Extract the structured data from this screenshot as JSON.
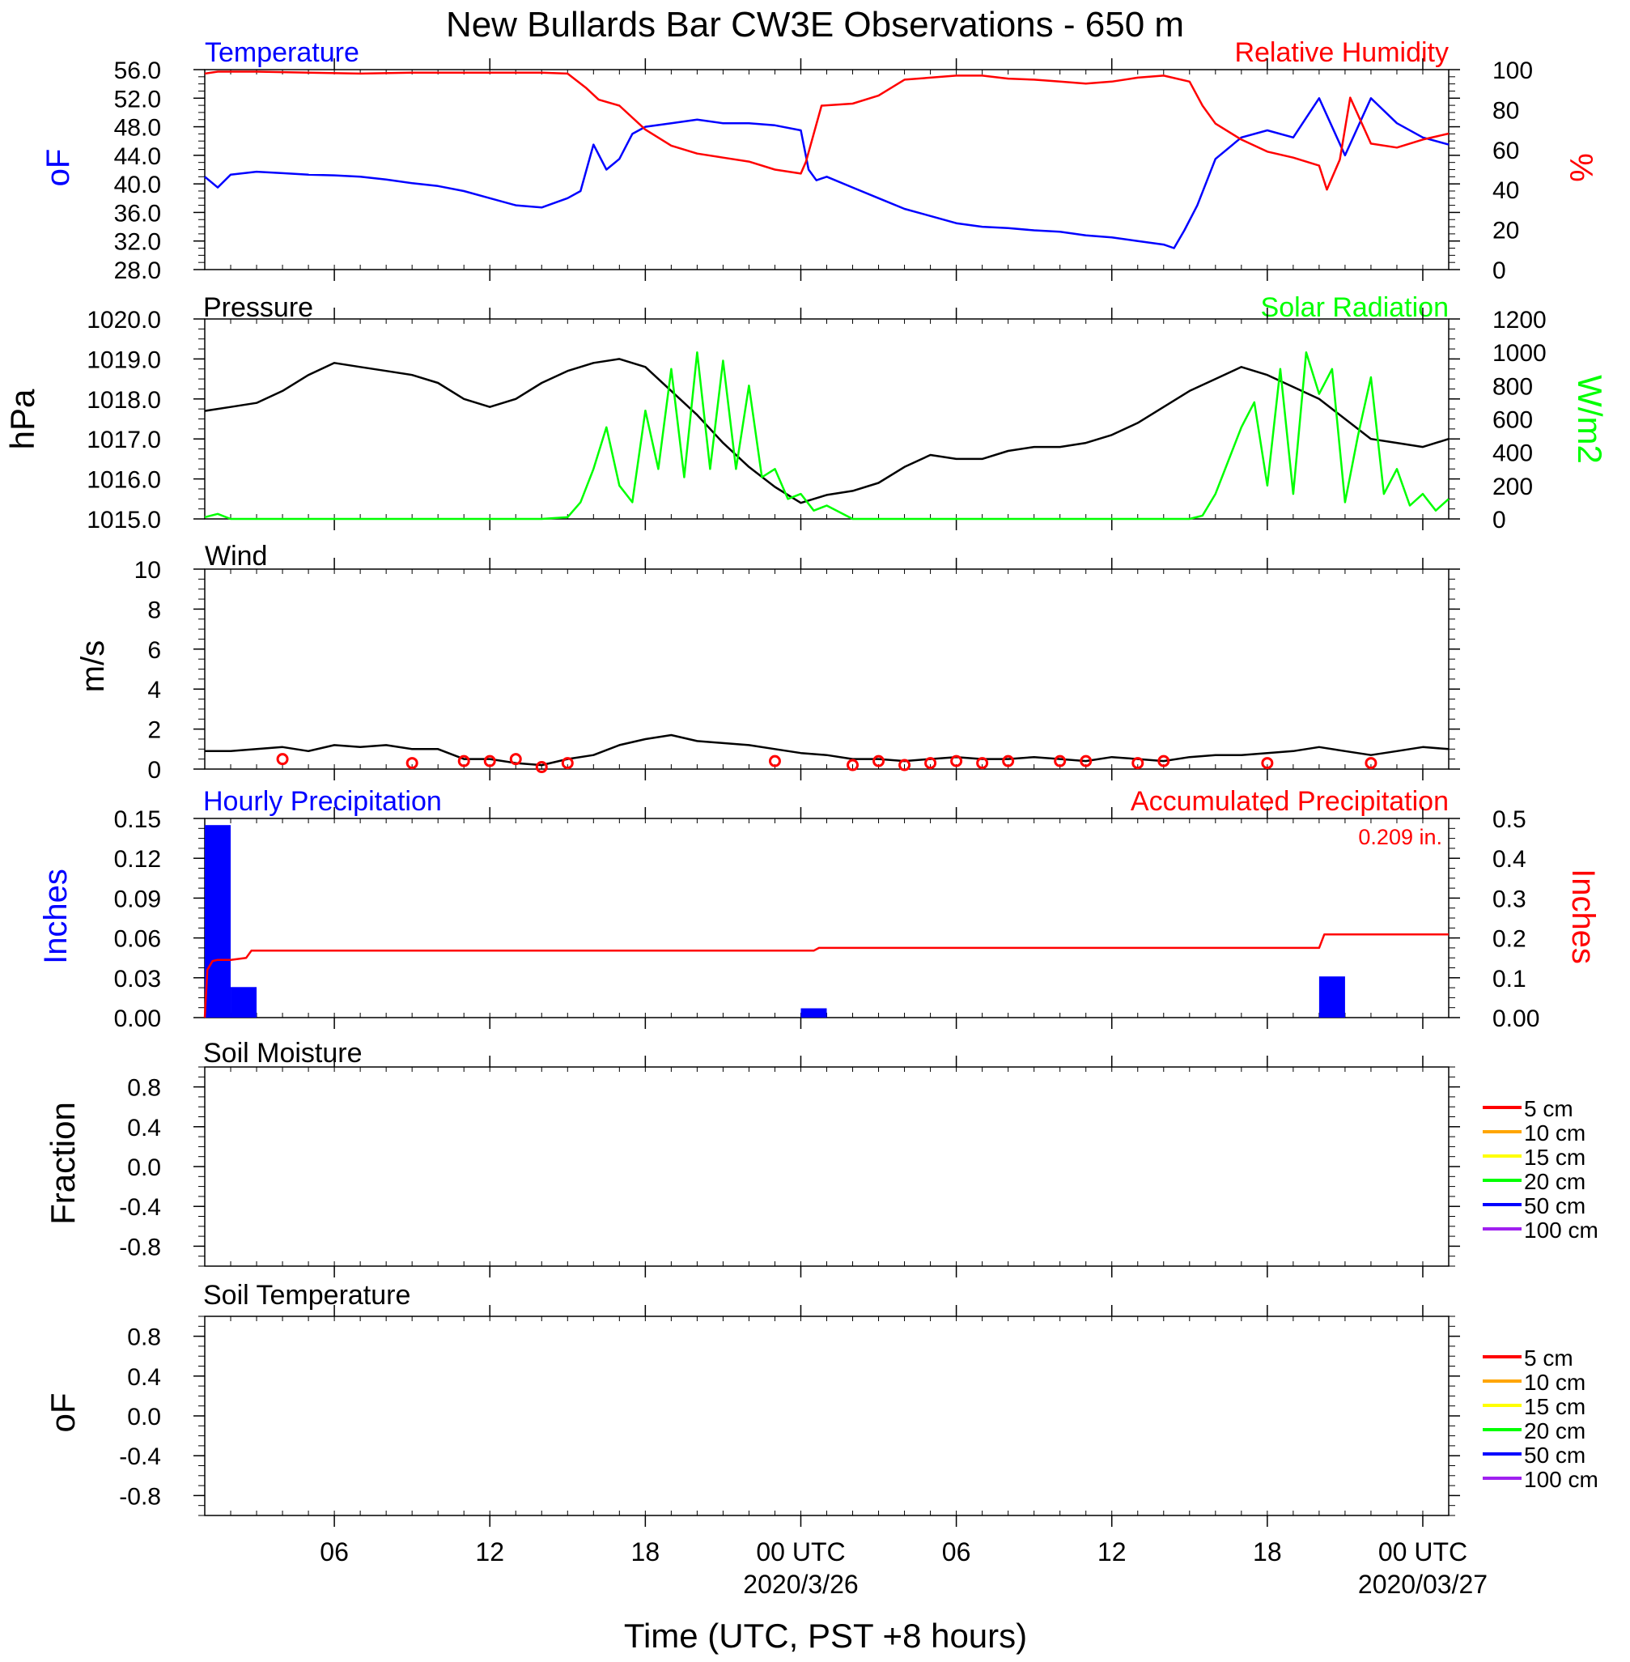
{
  "figure": {
    "title": "New Bullards Bar CW3E Observations - 650 m",
    "xlabel": "Time (UTC, PST +8 hours)",
    "time_axis": {
      "start_hour": 1,
      "end_hour": 49,
      "ticks": [
        {
          "hour": 6,
          "label": "06",
          "sublabel": ""
        },
        {
          "hour": 12,
          "label": "12",
          "sublabel": ""
        },
        {
          "hour": 18,
          "label": "18",
          "sublabel": ""
        },
        {
          "hour": 24,
          "label": "00 UTC",
          "sublabel": "2020/3/26"
        },
        {
          "hour": 30,
          "label": "06",
          "sublabel": ""
        },
        {
          "hour": 36,
          "label": "12",
          "sublabel": ""
        },
        {
          "hour": 42,
          "label": "18",
          "sublabel": ""
        },
        {
          "hour": 48,
          "label": "00 UTC",
          "sublabel": "2020/03/27"
        }
      ]
    }
  },
  "panels": {
    "temperature": {
      "left_title": "Temperature",
      "right_title": "Relative Humidity",
      "left_unit": "oF",
      "right_unit": "%"
    },
    "pressure": {
      "left_title": "Pressure",
      "right_title": "Solar Radiation",
      "left_unit": "hPa",
      "right_unit": "W/m2"
    },
    "wind": {
      "left_title": "Wind",
      "left_unit": "m/s"
    },
    "precip": {
      "left_title": "Hourly Precipitation",
      "right_title": "Accumulated Precipitation",
      "left_unit": "Inches",
      "right_unit": "Inches",
      "total_label": "0.209 in."
    },
    "soil_moisture": {
      "left_title": "Soil Moisture",
      "left_unit": "Fraction"
    },
    "soil_temperature": {
      "left_title": "Soil Temperature",
      "left_unit": "oF"
    }
  },
  "chart_data": [
    {
      "id": "temperature_rh",
      "type": "line",
      "x_unit": "hours since 2020-03-25 00 UTC",
      "xlim": [
        1,
        49
      ],
      "y_left": {
        "label": "oF",
        "lim": [
          28,
          56
        ],
        "ticks": [
          28.0,
          32.0,
          36.0,
          40.0,
          44.0,
          48.0,
          52.0,
          56.0
        ],
        "tick_labels": [
          "28.0",
          "32.0",
          "36.0",
          "40.0",
          "44.0",
          "48.0",
          "52.0",
          "56.0"
        ]
      },
      "y_right": {
        "label": "%",
        "lim": [
          0,
          100
        ],
        "ticks": [
          0,
          20,
          40,
          60,
          80,
          100
        ],
        "tick_labels": [
          "0",
          "20",
          "40",
          "60",
          "80",
          "100"
        ]
      },
      "series": [
        {
          "name": "Temperature",
          "axis": "left",
          "color": "#0000ff",
          "x": [
            1,
            1.5,
            2,
            3,
            4,
            5,
            6,
            7,
            8,
            9,
            10,
            11,
            12,
            13,
            14,
            15,
            15.5,
            16,
            16.5,
            17,
            17.5,
            18,
            19,
            20,
            21,
            22,
            23,
            24,
            24.3,
            24.6,
            25,
            26,
            27,
            28,
            29,
            30,
            31,
            32,
            33,
            34,
            35,
            36,
            37,
            38,
            38.4,
            38.8,
            39.3,
            40,
            41,
            42,
            43,
            44,
            45,
            46,
            47,
            48,
            49
          ],
          "y": [
            41,
            39.5,
            41.3,
            41.7,
            41.5,
            41.3,
            41.2,
            41.0,
            40.6,
            40.1,
            39.7,
            39.0,
            38.0,
            37.0,
            36.7,
            38.0,
            39.0,
            45.5,
            42.0,
            43.5,
            47.0,
            48.0,
            48.5,
            49.0,
            48.5,
            48.5,
            48.2,
            47.5,
            42.0,
            40.5,
            41.0,
            39.5,
            38.0,
            36.5,
            35.5,
            34.5,
            34.0,
            33.8,
            33.5,
            33.3,
            32.8,
            32.5,
            32.0,
            31.5,
            31.0,
            33.5,
            37.0,
            43.5,
            46.5,
            47.5,
            46.5,
            52.0,
            44.0,
            52.0,
            48.5,
            46.5,
            45.5
          ]
        },
        {
          "name": "Relative Humidity",
          "axis": "right",
          "color": "#ff0000",
          "x": [
            1,
            1.5,
            3,
            5,
            7,
            9,
            11,
            13,
            14,
            15,
            15.7,
            16.2,
            17,
            18,
            19,
            20,
            21,
            22,
            23,
            24,
            24.2,
            24.8,
            26,
            27,
            28,
            29,
            30,
            31,
            32,
            33,
            34,
            35,
            36,
            37,
            38,
            39,
            39.5,
            40,
            41,
            42,
            43,
            44,
            44.3,
            44.8,
            45.2,
            46,
            47,
            48,
            49
          ],
          "y": [
            98,
            99,
            99,
            98.5,
            98,
            98.5,
            98.5,
            98.5,
            98.5,
            98,
            91,
            85,
            82,
            70,
            62,
            58,
            56,
            54,
            50,
            48,
            54,
            82,
            83,
            87,
            95,
            96,
            97,
            97,
            95.5,
            95,
            94,
            93,
            94,
            96,
            97,
            94,
            82,
            73,
            65,
            59,
            56,
            52,
            40,
            55,
            86,
            63,
            61,
            65,
            68
          ]
        }
      ]
    },
    {
      "id": "pressure_solar",
      "type": "line",
      "x_unit": "hours since 2020-03-25 00 UTC",
      "xlim": [
        1,
        49
      ],
      "y_left": {
        "label": "hPa",
        "lim": [
          1015.0,
          1020.0
        ],
        "ticks": [
          1015,
          1016,
          1017,
          1018,
          1019,
          1020
        ],
        "tick_labels": [
          "1015.0",
          "1016.0",
          "1017.0",
          "1018.0",
          "1019.0",
          "1020.0"
        ]
      },
      "y_right": {
        "label": "W/m2",
        "lim": [
          0,
          1200
        ],
        "ticks": [
          0,
          200,
          400,
          600,
          800,
          1000,
          1200
        ],
        "tick_labels": [
          "0",
          "200",
          "400",
          "600",
          "800",
          "1000",
          "1200"
        ]
      },
      "series": [
        {
          "name": "Pressure",
          "axis": "left",
          "color": "#000000",
          "x": [
            1,
            2,
            3,
            4,
            5,
            6,
            7,
            8,
            9,
            10,
            11,
            12,
            13,
            14,
            15,
            16,
            17,
            18,
            19,
            20,
            21,
            22,
            23,
            24,
            25,
            26,
            27,
            28,
            29,
            30,
            31,
            32,
            33,
            34,
            35,
            36,
            37,
            38,
            39,
            40,
            41,
            42,
            43,
            44,
            45,
            46,
            47,
            48,
            49
          ],
          "y": [
            1017.7,
            1017.8,
            1017.9,
            1018.2,
            1018.6,
            1018.9,
            1018.8,
            1018.7,
            1018.6,
            1018.4,
            1018.0,
            1017.8,
            1018.0,
            1018.4,
            1018.7,
            1018.9,
            1019.0,
            1018.8,
            1018.2,
            1017.6,
            1016.9,
            1016.3,
            1015.8,
            1015.4,
            1015.6,
            1015.7,
            1015.9,
            1016.3,
            1016.6,
            1016.5,
            1016.5,
            1016.7,
            1016.8,
            1016.8,
            1016.9,
            1017.1,
            1017.4,
            1017.8,
            1018.2,
            1018.5,
            1018.8,
            1018.6,
            1018.3,
            1018.0,
            1017.5,
            1017.0,
            1016.9,
            1016.8,
            1017.0
          ]
        },
        {
          "name": "Solar Radiation",
          "axis": "right",
          "color": "#00ff00",
          "x": [
            1,
            1.5,
            2,
            14,
            15,
            15.5,
            16,
            16.5,
            17,
            17.5,
            18,
            18.5,
            19,
            19.5,
            20,
            20.5,
            21,
            21.5,
            22,
            22.5,
            23,
            23.5,
            24,
            24.5,
            25,
            26,
            39,
            39.5,
            40,
            40.5,
            41,
            41.5,
            42,
            42.5,
            43,
            43.5,
            44,
            44.5,
            45,
            45.5,
            46,
            46.5,
            47,
            47.5,
            48,
            48.5,
            49
          ],
          "y": [
            10,
            30,
            0,
            0,
            10,
            100,
            300,
            550,
            200,
            100,
            650,
            300,
            900,
            250,
            1000,
            300,
            950,
            300,
            800,
            250,
            300,
            120,
            150,
            50,
            80,
            0,
            0,
            20,
            150,
            350,
            550,
            700,
            200,
            900,
            150,
            1000,
            750,
            900,
            100,
            500,
            850,
            150,
            300,
            80,
            150,
            50,
            120
          ]
        }
      ]
    },
    {
      "id": "wind",
      "type": "line",
      "x_unit": "hours since 2020-03-25 00 UTC",
      "xlim": [
        1,
        49
      ],
      "y_left": {
        "label": "m/s",
        "lim": [
          0,
          10
        ],
        "ticks": [
          0,
          2,
          4,
          6,
          8,
          10
        ],
        "tick_labels": [
          "0",
          "2",
          "4",
          "6",
          "8",
          "10"
        ]
      },
      "series": [
        {
          "name": "Wind",
          "axis": "left",
          "color": "#000000",
          "x": [
            1,
            2,
            3,
            4,
            5,
            6,
            7,
            8,
            9,
            10,
            11,
            12,
            13,
            14,
            15,
            16,
            17,
            18,
            19,
            20,
            21,
            22,
            23,
            24,
            25,
            26,
            27,
            28,
            29,
            30,
            31,
            32,
            33,
            34,
            35,
            36,
            37,
            38,
            39,
            40,
            41,
            42,
            43,
            44,
            45,
            46,
            47,
            48,
            49
          ],
          "y": [
            0.9,
            0.9,
            1.0,
            1.1,
            0.9,
            1.2,
            1.1,
            1.2,
            1.0,
            1.0,
            0.5,
            0.5,
            0.3,
            0.2,
            0.5,
            0.7,
            1.2,
            1.5,
            1.7,
            1.4,
            1.3,
            1.2,
            1.0,
            0.8,
            0.7,
            0.5,
            0.5,
            0.4,
            0.5,
            0.6,
            0.5,
            0.5,
            0.6,
            0.5,
            0.4,
            0.6,
            0.5,
            0.4,
            0.6,
            0.7,
            0.7,
            0.8,
            0.9,
            1.1,
            0.9,
            0.7,
            0.9,
            1.1,
            1.0
          ]
        }
      ],
      "markers": {
        "name": "hourly mean wind",
        "color": "#ff0000",
        "x": [
          4,
          9,
          11,
          12,
          13,
          14,
          15,
          23,
          26,
          27,
          28,
          29,
          30,
          31,
          32,
          34,
          35,
          37,
          38,
          42,
          46
        ],
        "y": [
          0.5,
          0.3,
          0.4,
          0.4,
          0.5,
          0.1,
          0.3,
          0.4,
          0.2,
          0.4,
          0.2,
          0.3,
          0.4,
          0.3,
          0.4,
          0.4,
          0.4,
          0.3,
          0.4,
          0.3,
          0.3
        ]
      }
    },
    {
      "id": "precipitation",
      "type": "bar",
      "x_unit": "hours since 2020-03-25 00 UTC",
      "xlim": [
        1,
        49
      ],
      "y_left": {
        "label": "Inches",
        "lim": [
          0,
          0.15
        ],
        "ticks": [
          0,
          0.03,
          0.06,
          0.09,
          0.12,
          0.15
        ],
        "tick_labels": [
          "0.00",
          "0.03",
          "0.06",
          "0.09",
          "0.12",
          "0.15"
        ]
      },
      "y_right": {
        "label": "Inches",
        "lim": [
          0,
          0.5
        ],
        "ticks": [
          0,
          0.1,
          0.2,
          0.3,
          0.4,
          0.5
        ],
        "tick_labels": [
          "0.00",
          "0.1",
          "0.2",
          "0.3",
          "0.4",
          "0.5"
        ]
      },
      "series": [
        {
          "name": "Hourly Precipitation",
          "axis": "left",
          "color": "#0000ff",
          "x": [
            1,
            2,
            24,
            44
          ],
          "values": [
            0.145,
            0.023,
            0.007,
            0.031
          ]
        },
        {
          "name": "Accumulated Precipitation",
          "axis": "right",
          "color": "#ff0000",
          "x": [
            1,
            1.1,
            1.3,
            1.5,
            2.0,
            2.6,
            2.8,
            24.5,
            24.7,
            44.0,
            44.2,
            49
          ],
          "y": [
            0.0,
            0.12,
            0.142,
            0.145,
            0.145,
            0.15,
            0.168,
            0.168,
            0.175,
            0.175,
            0.209,
            0.209
          ]
        }
      ]
    },
    {
      "id": "soil_moisture",
      "type": "line",
      "x_unit": "hours since 2020-03-25 00 UTC",
      "xlim": [
        1,
        49
      ],
      "y_left": {
        "label": "Fraction",
        "lim": [
          -1,
          1
        ],
        "ticks": [
          -0.8,
          -0.4,
          0.0,
          0.4,
          0.8
        ],
        "tick_labels": [
          "-0.8",
          "-0.4",
          "0.0",
          "0.4",
          "0.8"
        ]
      },
      "legend": [
        {
          "label": "5 cm",
          "color": "#ff0000"
        },
        {
          "label": "10 cm",
          "color": "#ffa500"
        },
        {
          "label": "15 cm",
          "color": "#ffff00"
        },
        {
          "label": "20 cm",
          "color": "#00ff00"
        },
        {
          "label": "50 cm",
          "color": "#0000ff"
        },
        {
          "label": "100 cm",
          "color": "#a020f0"
        }
      ],
      "series": []
    },
    {
      "id": "soil_temperature",
      "type": "line",
      "x_unit": "hours since 2020-03-25 00 UTC",
      "xlim": [
        1,
        49
      ],
      "y_left": {
        "label": "oF",
        "lim": [
          -1,
          1
        ],
        "ticks": [
          -0.8,
          -0.4,
          0.0,
          0.4,
          0.8
        ],
        "tick_labels": [
          "-0.8",
          "-0.4",
          "0.0",
          "0.4",
          "0.8"
        ]
      },
      "legend": [
        {
          "label": "5 cm",
          "color": "#ff0000"
        },
        {
          "label": "10 cm",
          "color": "#ffa500"
        },
        {
          "label": "15 cm",
          "color": "#ffff00"
        },
        {
          "label": "20 cm",
          "color": "#00ff00"
        },
        {
          "label": "50 cm",
          "color": "#0000ff"
        },
        {
          "label": "100 cm",
          "color": "#a020f0"
        }
      ],
      "series": []
    }
  ]
}
